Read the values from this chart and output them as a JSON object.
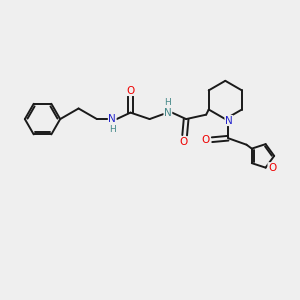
{
  "background_color": "#efefef",
  "bond_color": "#1a1a1a",
  "figsize": [
    3.0,
    3.0
  ],
  "dpi": 100,
  "xlim": [
    0,
    10
  ],
  "ylim": [
    0,
    10
  ],
  "colors": {
    "O": "#ee0000",
    "N_blue": "#2222cc",
    "N_teal": "#448888",
    "C": "#1a1a1a"
  }
}
